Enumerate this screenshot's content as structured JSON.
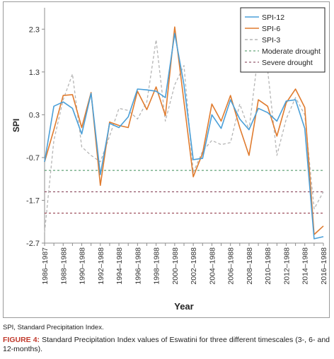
{
  "chart_data": {
    "type": "line",
    "ylabel": "SPI",
    "xlabel": "Year",
    "ylim": [
      -2.7,
      2.8
    ],
    "yticks": [
      "2.3",
      "1.3",
      "0.3",
      "-0.7",
      "-1.7",
      "-2.7"
    ],
    "ytick_values": [
      2.3,
      1.3,
      0.3,
      -0.7,
      -1.7,
      -2.7
    ],
    "xtick_labels": [
      "1986–1987",
      "1988–1988",
      "1990–1988",
      "1992–1988",
      "1994–1988",
      "1996–1988",
      "1998–1988",
      "2000–1988",
      "2002–1988",
      "2004–1988",
      "2006–1988",
      "2008–1988",
      "2010–1988",
      "2012–1988",
      "2014–1988",
      "2016–1988"
    ],
    "x_count": 31,
    "grid": false,
    "legend_position": "top-right",
    "series": [
      {
        "name": "SPI-12",
        "color": "#4a9fd8",
        "dash": "solid",
        "values": [
          -0.8,
          0.5,
          0.6,
          0.45,
          -0.15,
          0.8,
          -1.1,
          0.1,
          0.0,
          0.25,
          0.9,
          0.88,
          0.85,
          0.7,
          2.2,
          1.0,
          -0.75,
          -0.72,
          0.3,
          -0.02,
          0.65,
          0.2,
          -0.05,
          0.45,
          0.35,
          0.15,
          0.62,
          0.65,
          -0.02,
          -2.6,
          -2.55
        ]
      },
      {
        "name": "SPI-6",
        "color": "#e07b2e",
        "dash": "solid",
        "values": [
          -0.8,
          -0.05,
          0.75,
          0.77,
          0.0,
          0.82,
          -1.35,
          0.13,
          0.05,
          0.0,
          0.85,
          0.42,
          0.95,
          0.28,
          2.35,
          0.6,
          -1.15,
          -0.6,
          0.55,
          0.15,
          0.75,
          0.0,
          -0.65,
          0.65,
          0.5,
          -0.2,
          0.58,
          0.9,
          0.47,
          -2.5,
          -2.3
        ]
      },
      {
        "name": "SPI-3",
        "color": "#b5b5b5",
        "dash": "dashed",
        "values": [
          -2.45,
          -0.3,
          0.65,
          1.25,
          -0.45,
          -0.65,
          -0.8,
          -0.2,
          0.45,
          0.4,
          0.2,
          0.6,
          2.05,
          0.15,
          1.0,
          1.45,
          -1.05,
          -0.55,
          -0.3,
          -0.4,
          -0.35,
          0.55,
          -0.05,
          1.75,
          1.35,
          -0.65,
          0.2,
          0.7,
          0.3,
          -1.9,
          -1.5
        ]
      }
    ],
    "reference_lines": [
      {
        "name": "Moderate drought",
        "value": -1.0,
        "color": "#3f8f5a"
      },
      {
        "name": "Severe drought",
        "value": -1.5,
        "color": "#7a3048"
      },
      {
        "name": "",
        "value": -2.0,
        "color": "#8a2a3a"
      }
    ]
  },
  "footnote": "SPI, Standard Precipitation Index.",
  "caption": {
    "label": "FIGURE 4:",
    "text": " Standard Precipitation Index values of Eswatini for three different timescales (3-, 6- and 12-months)."
  }
}
